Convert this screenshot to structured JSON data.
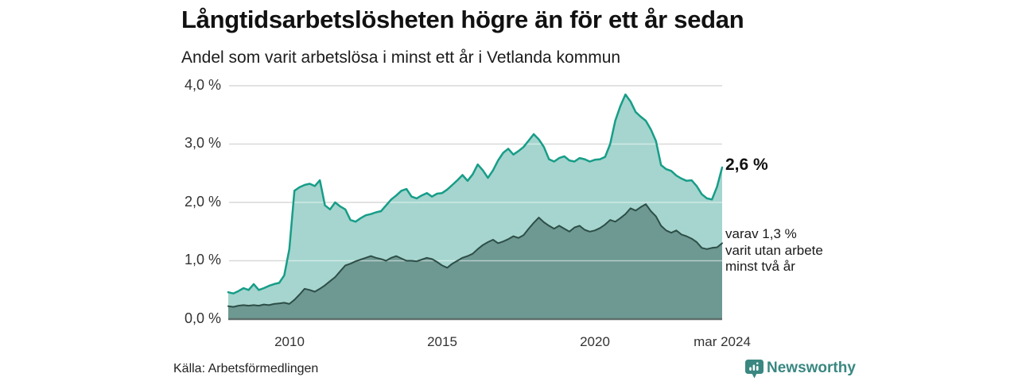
{
  "header": {
    "title": "Långtidsarbetslösheten högre än för ett år sedan",
    "subtitle": "Andel som varit arbetslösa i minst ett år i Vetlanda kommun"
  },
  "annotations": {
    "end_value": "2,6 %",
    "breakdown_note": "varav 1,3 %\nvarit utan arbete\nminst två år"
  },
  "footer": {
    "source": "Källa: Arbetsförmedlingen",
    "brand": "Newsworthy"
  },
  "colors": {
    "background": "#ffffff",
    "grid": "#d9d9d9",
    "grid_over_area": "rgba(255,255,255,0.5)",
    "baseline": "#5e6e6a",
    "brand_teal": "#3a8781",
    "text": "#1a1a1a"
  },
  "chart_data": {
    "type": "area",
    "title": "Långtidsarbetslösheten högre än för ett år sedan",
    "subtitle": "Andel som varit arbetslösa i minst ett år i Vetlanda kommun",
    "ylabel": "",
    "xlabel": "",
    "ylim": [
      0,
      4
    ],
    "grid": true,
    "x_start_year": 2008.0,
    "x_end_year": 2024.1667,
    "x_step_years": 0.1667,
    "y_ticks": [
      "4,0 %",
      "3,0 %",
      "2,0 %",
      "1,0 %",
      "0,0 %"
    ],
    "y_tick_values": [
      4.0,
      3.0,
      2.0,
      1.0,
      0.0
    ],
    "x_ticks": [
      {
        "label": "2010",
        "year": 2010
      },
      {
        "label": "2015",
        "year": 2015
      },
      {
        "label": "2020",
        "year": 2020
      },
      {
        "label": "mar 2024",
        "year": 2024.1667
      }
    ],
    "series": [
      {
        "name": "Arbetslösa minst ett år",
        "end_value_pct": 2.6,
        "fill": "#a5d5ce",
        "stroke": "#179d88",
        "stroke_width": 2.5,
        "values": [
          0.46,
          0.44,
          0.48,
          0.53,
          0.5,
          0.6,
          0.5,
          0.53,
          0.57,
          0.6,
          0.62,
          0.75,
          1.2,
          2.2,
          2.26,
          2.3,
          2.32,
          2.28,
          2.38,
          1.95,
          1.88,
          2.0,
          1.93,
          1.88,
          1.7,
          1.67,
          1.73,
          1.78,
          1.8,
          1.83,
          1.85,
          1.95,
          2.05,
          2.12,
          2.2,
          2.23,
          2.1,
          2.07,
          2.12,
          2.16,
          2.1,
          2.15,
          2.16,
          2.22,
          2.3,
          2.38,
          2.47,
          2.37,
          2.48,
          2.65,
          2.55,
          2.42,
          2.55,
          2.72,
          2.85,
          2.92,
          2.82,
          2.88,
          2.95,
          3.06,
          3.17,
          3.08,
          2.95,
          2.74,
          2.7,
          2.76,
          2.79,
          2.72,
          2.7,
          2.76,
          2.74,
          2.7,
          2.73,
          2.74,
          2.78,
          3.0,
          3.4,
          3.65,
          3.85,
          3.73,
          3.55,
          3.47,
          3.4,
          3.25,
          3.05,
          2.64,
          2.57,
          2.54,
          2.46,
          2.41,
          2.37,
          2.38,
          2.28,
          2.14,
          2.07,
          2.05,
          2.27,
          2.6
        ]
      },
      {
        "name": "Varav arbetslösa minst två år",
        "end_value_pct": 1.3,
        "fill": "#6d9992",
        "stroke": "#2e4e48",
        "stroke_width": 2,
        "values": [
          0.22,
          0.21,
          0.23,
          0.24,
          0.23,
          0.24,
          0.23,
          0.25,
          0.24,
          0.26,
          0.27,
          0.28,
          0.26,
          0.33,
          0.42,
          0.52,
          0.5,
          0.47,
          0.52,
          0.58,
          0.65,
          0.72,
          0.82,
          0.92,
          0.95,
          0.99,
          1.02,
          1.05,
          1.08,
          1.05,
          1.03,
          1.0,
          1.05,
          1.08,
          1.04,
          1.0,
          1.0,
          0.99,
          1.02,
          1.05,
          1.03,
          0.98,
          0.92,
          0.88,
          0.95,
          1.0,
          1.05,
          1.08,
          1.12,
          1.2,
          1.27,
          1.32,
          1.36,
          1.3,
          1.33,
          1.37,
          1.42,
          1.39,
          1.44,
          1.55,
          1.65,
          1.74,
          1.66,
          1.6,
          1.55,
          1.6,
          1.55,
          1.5,
          1.57,
          1.6,
          1.53,
          1.5,
          1.52,
          1.56,
          1.62,
          1.7,
          1.67,
          1.73,
          1.8,
          1.9,
          1.86,
          1.92,
          1.97,
          1.85,
          1.76,
          1.6,
          1.52,
          1.48,
          1.52,
          1.45,
          1.42,
          1.38,
          1.32,
          1.22,
          1.2,
          1.22,
          1.23,
          1.3
        ]
      }
    ]
  }
}
